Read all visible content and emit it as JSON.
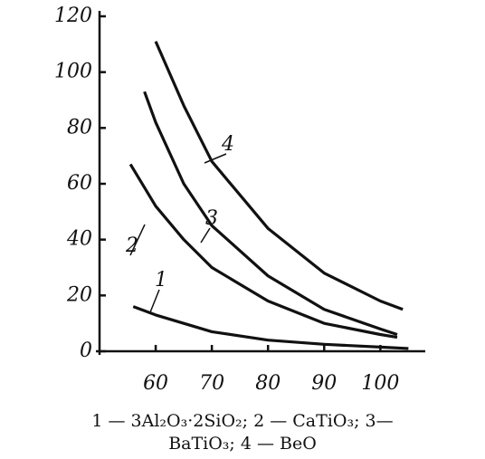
{
  "chart_data": {
    "type": "line",
    "caption": [
      "1 — 3Al₂O₃·2SiO₂; 2 — CaTiO₃; 3—",
      "BaTiO₃; 4 — BeO"
    ],
    "xlim": [
      50,
      108
    ],
    "ylim": [
      0,
      120
    ],
    "xticks": [
      60,
      70,
      80,
      90,
      100
    ],
    "yticks": [
      0,
      20,
      40,
      60,
      80,
      100,
      120
    ],
    "series": [
      {
        "name": "1",
        "color": "#111111",
        "x": [
          56,
          60,
          70,
          80,
          90,
          100,
          105
        ],
        "values": [
          16,
          13,
          7,
          4,
          2.5,
          1.5,
          1
        ]
      },
      {
        "name": "2",
        "color": "#111111",
        "x": [
          55.5,
          60,
          65,
          70,
          80,
          90,
          100,
          103
        ],
        "values": [
          67,
          52,
          40,
          30,
          18,
          10,
          6,
          5
        ]
      },
      {
        "name": "3",
        "color": "#111111",
        "x": [
          58,
          60,
          65,
          70,
          80,
          90,
          100,
          103
        ],
        "values": [
          93,
          82,
          60,
          45,
          27,
          15,
          8,
          6
        ]
      },
      {
        "name": "4",
        "color": "#111111",
        "x": [
          60,
          65,
          70,
          80,
          90,
          100,
          104
        ],
        "values": [
          111,
          88,
          68,
          44,
          28,
          18,
          15
        ]
      }
    ]
  }
}
